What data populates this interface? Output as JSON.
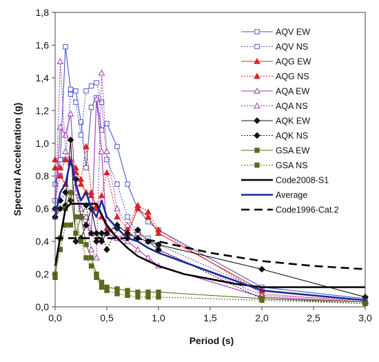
{
  "chart_data": {
    "type": "line",
    "title": "",
    "xlabel": "Period (s)",
    "ylabel": "Spectral Acceleration (g)",
    "xlim": [
      0,
      3
    ],
    "ylim": [
      0,
      1.8
    ],
    "grid": false,
    "legend_position": "top-right",
    "x_tick_labels": [
      "0,0",
      "0,5",
      "1,0",
      "1,5",
      "2,0",
      "2,5",
      "3,0"
    ],
    "y_tick_labels": [
      "0,0",
      "0,2",
      "0,4",
      "0,6",
      "0,8",
      "1,0",
      "1,2",
      "1,4",
      "1,6",
      "1,8"
    ],
    "series": [
      {
        "name": "AQV EW",
        "color": "#4a55c4",
        "dash": "",
        "marker": "square-open",
        "width": 1.1,
        "x": [
          0.0,
          0.05,
          0.1,
          0.15,
          0.2,
          0.25,
          0.3,
          0.35,
          0.4,
          0.45,
          0.5,
          0.6,
          0.7,
          0.8,
          0.9,
          1.0,
          2.0,
          3.0
        ],
        "y": [
          0.75,
          0.9,
          1.59,
          1.33,
          1.32,
          1.13,
          0.85,
          1.22,
          1.28,
          1.08,
          1.12,
          0.98,
          0.75,
          0.6,
          0.52,
          0.47,
          0.12,
          0.05
        ]
      },
      {
        "name": "AQV NS",
        "color": "#4a55c4",
        "dash": "2,2",
        "marker": "square-open",
        "width": 1.1,
        "x": [
          0.0,
          0.05,
          0.1,
          0.15,
          0.2,
          0.25,
          0.3,
          0.35,
          0.4,
          0.45,
          0.5,
          0.6,
          0.7,
          0.8,
          0.9,
          1.0,
          2.0,
          3.0
        ],
        "y": [
          0.65,
          0.8,
          0.9,
          1.3,
          1.25,
          1.05,
          1.32,
          1.35,
          1.37,
          1.25,
          0.9,
          0.75,
          0.55,
          0.45,
          0.42,
          0.38,
          0.1,
          0.04
        ]
      },
      {
        "name": "AQG EW",
        "color": "#e02020",
        "dash": "",
        "marker": "triangle-filled",
        "width": 1.1,
        "x": [
          0.0,
          0.05,
          0.1,
          0.15,
          0.2,
          0.25,
          0.3,
          0.35,
          0.4,
          0.45,
          0.5,
          0.6,
          0.7,
          0.8,
          0.9,
          1.0,
          2.0,
          3.0
        ],
        "y": [
          0.85,
          0.8,
          0.75,
          0.9,
          0.82,
          0.75,
          0.7,
          0.68,
          0.62,
          0.55,
          0.48,
          0.42,
          0.45,
          0.6,
          0.55,
          0.45,
          0.1,
          0.04
        ]
      },
      {
        "name": "AQG NS",
        "color": "#e02020",
        "dash": "2,2",
        "marker": "triangle-filled",
        "width": 1.1,
        "x": [
          0.0,
          0.05,
          0.1,
          0.15,
          0.2,
          0.25,
          0.3,
          0.35,
          0.4,
          0.45,
          0.5,
          0.6,
          0.7,
          0.8,
          0.9,
          1.0,
          2.0,
          3.0
        ],
        "y": [
          0.9,
          0.85,
          0.9,
          0.88,
          0.85,
          0.78,
          0.98,
          0.7,
          0.6,
          0.68,
          0.82,
          0.55,
          0.48,
          0.62,
          0.58,
          0.47,
          0.08,
          0.03
        ]
      },
      {
        "name": "AQA EW",
        "color": "#a035b0",
        "dash": "",
        "marker": "triangle-open",
        "width": 1.1,
        "x": [
          0.0,
          0.05,
          0.1,
          0.15,
          0.2,
          0.25,
          0.3,
          0.35,
          0.4,
          0.45,
          0.5,
          0.6,
          0.7,
          0.8,
          0.9,
          1.0,
          2.0,
          3.0
        ],
        "y": [
          0.6,
          1.1,
          1.05,
          1.18,
          0.7,
          0.55,
          0.5,
          0.45,
          1.27,
          0.95,
          0.45,
          0.42,
          0.4,
          0.35,
          0.3,
          0.25,
          0.06,
          0.03
        ]
      },
      {
        "name": "AQA NS",
        "color": "#a035b0",
        "dash": "2,2",
        "marker": "triangle-open",
        "width": 1.1,
        "x": [
          0.0,
          0.05,
          0.1,
          0.15,
          0.2,
          0.25,
          0.3,
          0.35,
          0.4,
          0.45,
          0.5,
          0.6,
          0.7,
          0.8,
          0.9,
          1.0,
          2.0,
          3.0
        ],
        "y": [
          0.55,
          1.5,
          0.95,
          0.9,
          0.8,
          0.6,
          0.55,
          0.35,
          0.3,
          1.43,
          0.95,
          0.6,
          0.5,
          0.45,
          0.4,
          0.35,
          0.07,
          0.04
        ]
      },
      {
        "name": "AQK EW",
        "color": "#111111",
        "dash": "",
        "marker": "diamond-filled",
        "width": 1.1,
        "x": [
          0.0,
          0.05,
          0.1,
          0.15,
          0.2,
          0.25,
          0.3,
          0.35,
          0.4,
          0.45,
          0.5,
          0.6,
          0.7,
          0.8,
          0.9,
          1.0,
          2.0,
          3.0
        ],
        "y": [
          0.55,
          0.6,
          0.62,
          1.02,
          0.4,
          0.42,
          0.5,
          0.6,
          0.45,
          0.4,
          0.45,
          0.5,
          0.45,
          0.42,
          0.4,
          0.38,
          0.23,
          0.06
        ]
      },
      {
        "name": "AQK NS",
        "color": "#111111",
        "dash": "2,2",
        "marker": "diamond-filled",
        "width": 1.1,
        "x": [
          0.0,
          0.05,
          0.1,
          0.15,
          0.2,
          0.25,
          0.3,
          0.35,
          0.4,
          0.45,
          0.5,
          0.6,
          0.7,
          0.8,
          0.9,
          1.0,
          2.0,
          3.0
        ],
        "y": [
          0.6,
          0.65,
          0.7,
          0.65,
          0.78,
          0.55,
          0.62,
          0.45,
          0.4,
          0.45,
          0.35,
          0.48,
          0.42,
          0.47,
          0.4,
          0.35,
          0.05,
          0.02
        ]
      },
      {
        "name": "GSA EW",
        "color": "#5a6a1c",
        "dash": "",
        "marker": "square-filled",
        "width": 1.1,
        "x": [
          0.0,
          0.05,
          0.1,
          0.15,
          0.2,
          0.25,
          0.3,
          0.35,
          0.4,
          0.45,
          0.5,
          0.6,
          0.7,
          0.8,
          0.9,
          1.0,
          2.0,
          3.0
        ],
        "y": [
          0.18,
          0.42,
          0.6,
          0.7,
          0.45,
          0.55,
          0.38,
          0.3,
          0.2,
          0.15,
          0.12,
          0.11,
          0.1,
          0.09,
          0.09,
          0.09,
          0.05,
          0.03
        ]
      },
      {
        "name": "GSA NS",
        "color": "#5a6a1c",
        "dash": "2,2",
        "marker": "square-filled",
        "width": 1.1,
        "x": [
          0.0,
          0.05,
          0.1,
          0.15,
          0.2,
          0.25,
          0.3,
          0.35,
          0.4,
          0.45,
          0.5,
          0.6,
          0.7,
          0.8,
          0.9,
          1.0,
          2.0,
          3.0
        ],
        "y": [
          0.2,
          0.35,
          0.5,
          0.5,
          0.55,
          0.4,
          0.3,
          0.25,
          0.18,
          0.12,
          0.1,
          0.08,
          0.07,
          0.06,
          0.06,
          0.06,
          0.04,
          0.02
        ]
      },
      {
        "name": "Code2008-S1",
        "color": "#000000",
        "dash": "",
        "marker": "none",
        "width": 2.6,
        "x": [
          0.0,
          0.1,
          0.15,
          0.3,
          0.4,
          0.5,
          0.6,
          0.7,
          0.8,
          0.9,
          1.0,
          1.25,
          1.5,
          1.75,
          2.0,
          2.5,
          3.0
        ],
        "y": [
          0.25,
          0.6,
          0.63,
          0.63,
          0.63,
          0.5,
          0.42,
          0.36,
          0.31,
          0.28,
          0.25,
          0.2,
          0.17,
          0.14,
          0.12,
          0.12,
          0.12
        ]
      },
      {
        "name": "Average",
        "color": "#1a2a9a",
        "dash": "",
        "marker": "none",
        "width": 2.6,
        "x": [
          0.0,
          0.05,
          0.1,
          0.15,
          0.2,
          0.25,
          0.3,
          0.35,
          0.4,
          0.45,
          0.5,
          0.6,
          0.7,
          0.8,
          0.9,
          1.0,
          2.0,
          3.0
        ],
        "y": [
          0.55,
          0.7,
          0.75,
          0.9,
          0.75,
          0.65,
          0.7,
          0.6,
          0.55,
          0.65,
          0.55,
          0.48,
          0.42,
          0.4,
          0.36,
          0.33,
          0.1,
          0.04
        ]
      },
      {
        "name": "Code1996-Cat.2",
        "color": "#000000",
        "dash": "12,7",
        "marker": "none",
        "width": 2.6,
        "x": [
          0.0,
          0.3,
          0.3,
          0.5,
          0.75,
          1.0,
          1.5,
          2.0,
          2.5,
          3.0
        ],
        "y": [
          0.42,
          0.42,
          0.42,
          0.42,
          0.42,
          0.4,
          0.33,
          0.28,
          0.25,
          0.23
        ]
      }
    ]
  }
}
